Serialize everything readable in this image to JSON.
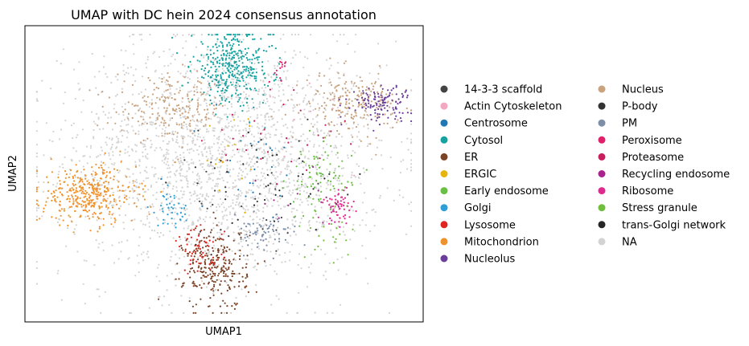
{
  "chart_data": {
    "type": "scatter",
    "title": "UMAP with DC hein 2024 consensus annotation",
    "xlabel": "UMAP1",
    "ylabel": "UMAP2",
    "xticks": [],
    "yticks": [],
    "legend_position": "right",
    "categories": [
      {
        "name": "14-3-3 scaffold",
        "color": "#444444"
      },
      {
        "name": "Actin Cytoskeleton",
        "color": "#f3a7c0"
      },
      {
        "name": "Centrosome",
        "color": "#1f77b4"
      },
      {
        "name": "Cytosol",
        "color": "#17a2a2"
      },
      {
        "name": "ER",
        "color": "#7b4327"
      },
      {
        "name": "ERGIC",
        "color": "#e6b40a"
      },
      {
        "name": "Early endosome",
        "color": "#6abf45"
      },
      {
        "name": "Golgi",
        "color": "#2e9fd6"
      },
      {
        "name": "Lysosome",
        "color": "#e0251f"
      },
      {
        "name": "Mitochondrion",
        "color": "#f0922b"
      },
      {
        "name": "Nucleolus",
        "color": "#6a3d9a"
      },
      {
        "name": "Nucleus",
        "color": "#c9a27e"
      },
      {
        "name": "P-body",
        "color": "#333333"
      },
      {
        "name": "PM",
        "color": "#7c8ea8"
      },
      {
        "name": "Peroxisome",
        "color": "#e0206b"
      },
      {
        "name": "Proteasome",
        "color": "#c81d5e"
      },
      {
        "name": "Recycling endosome",
        "color": "#a8238c"
      },
      {
        "name": "Ribosome",
        "color": "#dd2c8e"
      },
      {
        "name": "Stress granule",
        "color": "#6fbf3f"
      },
      {
        "name": "trans-Golgi network",
        "color": "#262626"
      },
      {
        "name": "NA",
        "color": "#d3d3d3"
      }
    ],
    "clusters": [
      {
        "category": "NA",
        "cx": 0.5,
        "cy": 0.55,
        "sx": 0.2,
        "sy": 0.2,
        "n": 2200
      },
      {
        "category": "Mitochondrion",
        "cx": 0.16,
        "cy": 0.43,
        "sx": 0.06,
        "sy": 0.05,
        "n": 360
      },
      {
        "category": "Cytosol",
        "cx": 0.52,
        "cy": 0.86,
        "sx": 0.05,
        "sy": 0.06,
        "n": 380
      },
      {
        "category": "Nucleus",
        "cx": 0.37,
        "cy": 0.72,
        "sx": 0.07,
        "sy": 0.05,
        "n": 200
      },
      {
        "category": "Nucleus",
        "cx": 0.82,
        "cy": 0.74,
        "sx": 0.06,
        "sy": 0.05,
        "n": 200
      },
      {
        "category": "Nucleolus",
        "cx": 0.89,
        "cy": 0.74,
        "sx": 0.04,
        "sy": 0.03,
        "n": 120
      },
      {
        "category": "ER",
        "cx": 0.48,
        "cy": 0.18,
        "sx": 0.04,
        "sy": 0.07,
        "n": 260
      },
      {
        "category": "Lysosome",
        "cx": 0.44,
        "cy": 0.24,
        "sx": 0.03,
        "sy": 0.04,
        "n": 60
      },
      {
        "category": "Ribosome",
        "cx": 0.79,
        "cy": 0.39,
        "sx": 0.02,
        "sy": 0.03,
        "n": 60
      },
      {
        "category": "Early endosome",
        "cx": 0.74,
        "cy": 0.48,
        "sx": 0.04,
        "sy": 0.06,
        "n": 80
      },
      {
        "category": "PM",
        "cx": 0.6,
        "cy": 0.3,
        "sx": 0.04,
        "sy": 0.03,
        "n": 70
      },
      {
        "category": "Golgi",
        "cx": 0.37,
        "cy": 0.38,
        "sx": 0.02,
        "sy": 0.03,
        "n": 40
      },
      {
        "category": "Centrosome",
        "cx": 0.55,
        "cy": 0.55,
        "sx": 0.08,
        "sy": 0.1,
        "n": 25
      },
      {
        "category": "14-3-3 scaffold",
        "cx": 0.58,
        "cy": 0.4,
        "sx": 0.1,
        "sy": 0.1,
        "n": 30
      },
      {
        "category": "trans-Golgi network",
        "cx": 0.6,
        "cy": 0.45,
        "sx": 0.1,
        "sy": 0.1,
        "n": 30
      },
      {
        "category": "Proteasome",
        "cx": 0.65,
        "cy": 0.6,
        "sx": 0.1,
        "sy": 0.1,
        "n": 30
      },
      {
        "category": "Peroxisome",
        "cx": 0.64,
        "cy": 0.85,
        "sx": 0.01,
        "sy": 0.02,
        "n": 15
      },
      {
        "category": "ERGIC",
        "cx": 0.52,
        "cy": 0.55,
        "sx": 0.06,
        "sy": 0.08,
        "n": 15
      },
      {
        "category": "Recycling endosome",
        "cx": 0.7,
        "cy": 0.45,
        "sx": 0.08,
        "sy": 0.08,
        "n": 12
      },
      {
        "category": "Actin Cytoskeleton",
        "cx": 0.6,
        "cy": 0.65,
        "sx": 0.12,
        "sy": 0.1,
        "n": 12
      },
      {
        "category": "Stress granule",
        "cx": 0.76,
        "cy": 0.3,
        "sx": 0.04,
        "sy": 0.04,
        "n": 20
      },
      {
        "category": "P-body",
        "cx": 0.62,
        "cy": 0.5,
        "sx": 0.1,
        "sy": 0.1,
        "n": 15
      }
    ]
  }
}
